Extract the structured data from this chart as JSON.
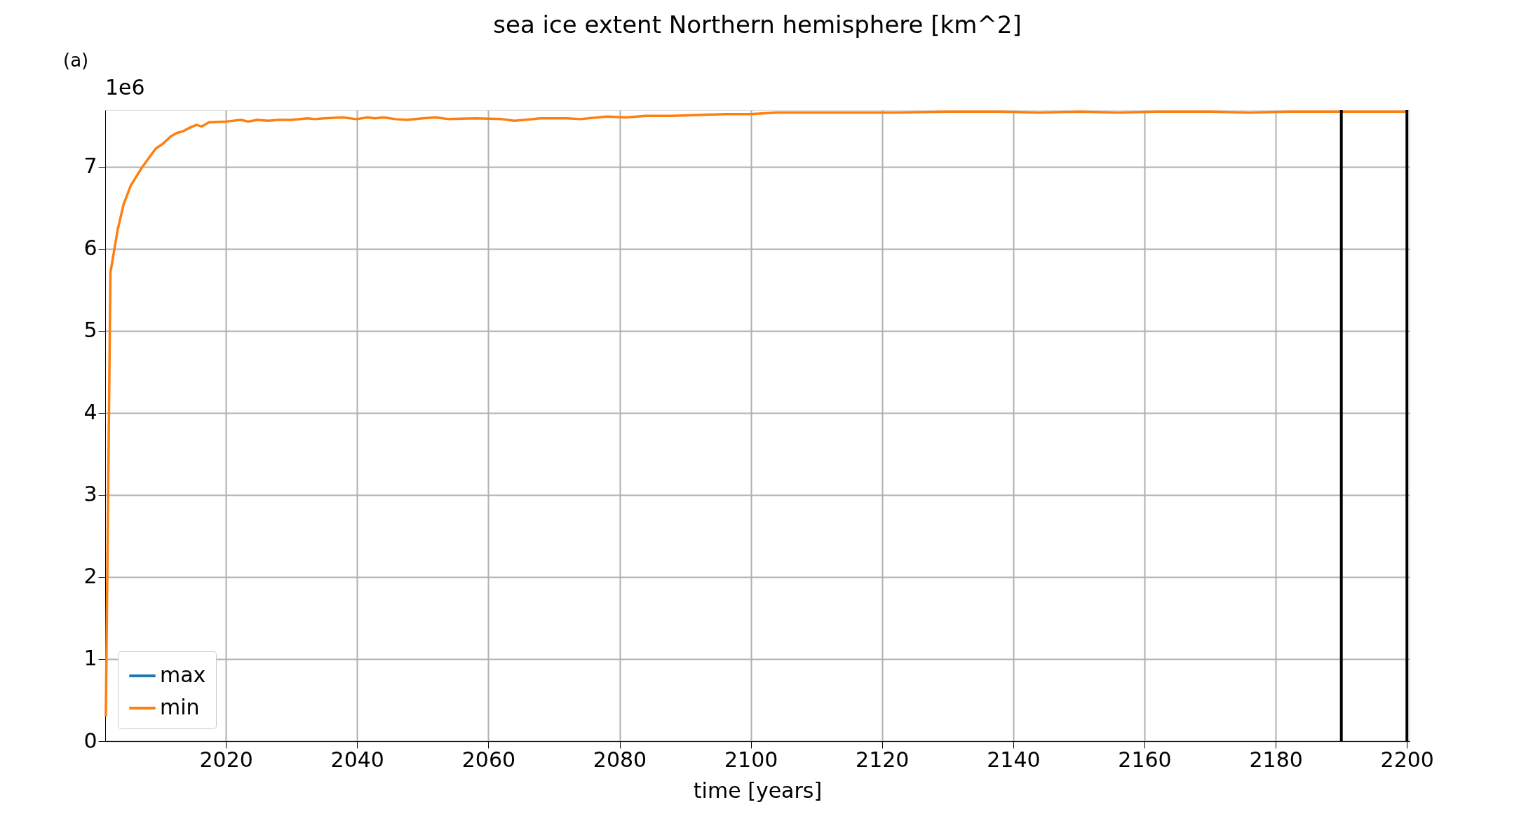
{
  "chart_data": {
    "type": "line",
    "title": "sea ice extent Northern hemisphere [km^2]",
    "xlabel": "time [years]",
    "annotations": [
      "(a)",
      "1e6"
    ],
    "xlim": [
      2001.6,
      2200.4
    ],
    "xticks": [
      2020,
      2040,
      2060,
      2080,
      2100,
      2120,
      2140,
      2160,
      2180,
      2200
    ],
    "ylim": [
      0,
      7.69
    ],
    "yticks": [
      0,
      1,
      2,
      3,
      4,
      5,
      6,
      7
    ],
    "grid": true,
    "legend": "bottom left",
    "line_style": "solid",
    "marker": "none",
    "series": [
      {
        "name": "max",
        "color": "#1f77b4"
      },
      {
        "name": "min",
        "color": "#ff7f0e",
        "x": [
          2001.7,
          2002.4,
          2003.5,
          2004.4,
          2005.5,
          2007.2,
          2009.3,
          2010.4,
          2011.6,
          2012.5,
          2013.4,
          2014.6,
          2015.5,
          2016.3,
          2017.4,
          2020,
          2022.3,
          2023.4,
          2024.8,
          2026.5,
          2027.9,
          2030,
          2032.5,
          2033.5,
          2035,
          2037.8,
          2039.9,
          2041.6,
          2042.7,
          2044.1,
          2045.8,
          2047.6,
          2050,
          2052,
          2054,
          2058,
          2062,
          2064,
          2068,
          2072,
          2074,
          2078,
          2081,
          2084,
          2088,
          2092,
          2096,
          2100,
          2104,
          2110,
          2116,
          2122,
          2130,
          2138,
          2144,
          2150,
          2156,
          2162,
          2170,
          2176,
          2182,
          2188,
          2194,
          2200
        ],
        "values": [
          0.3,
          5.71,
          6.23,
          6.54,
          6.77,
          6.99,
          7.22,
          7.28,
          7.37,
          7.41,
          7.43,
          7.48,
          7.51,
          7.49,
          7.54,
          7.55,
          7.57,
          7.55,
          7.57,
          7.56,
          7.57,
          7.57,
          7.59,
          7.58,
          7.59,
          7.6,
          7.58,
          7.6,
          7.59,
          7.6,
          7.58,
          7.57,
          7.59,
          7.6,
          7.58,
          7.59,
          7.58,
          7.56,
          7.59,
          7.59,
          7.58,
          7.61,
          7.6,
          7.62,
          7.62,
          7.63,
          7.64,
          7.64,
          7.66,
          7.66,
          7.66,
          7.66,
          7.67,
          7.67,
          7.66,
          7.67,
          7.66,
          7.67,
          7.67,
          7.66,
          7.67,
          7.67,
          7.67,
          7.67
        ]
      }
    ],
    "ref_lines": [
      {
        "axis": "x",
        "value": 2190,
        "color": "#000000"
      },
      {
        "axis": "x",
        "value": 2200,
        "color": "#000000"
      }
    ]
  }
}
